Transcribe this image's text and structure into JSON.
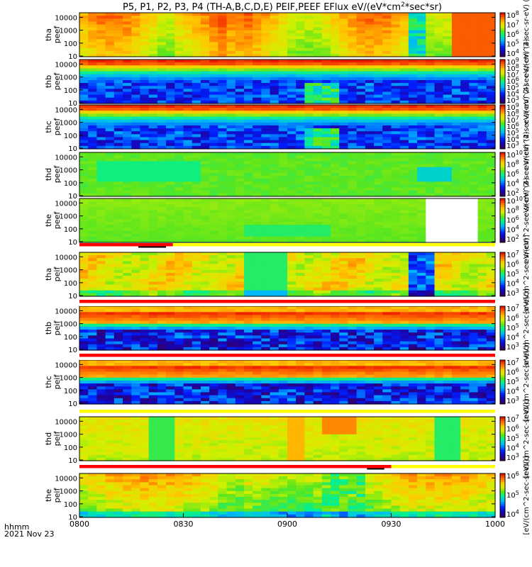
{
  "chart_data": {
    "type": "heatmap",
    "title": "P5, P1, P2, P3, P4 (TH-A,B,C,D,E) PEIF,PEEF EFlux eV/(eV*cm^2*sec*sr)",
    "x_axis": {
      "ticks": [
        "0800",
        "0830",
        "0900",
        "0930",
        "1000"
      ],
      "range": [
        "08:00",
        "10:00"
      ],
      "label_line1": "hhmm",
      "label_line2": "2021 Nov 23"
    },
    "y_axis_ticks": [
      "10",
      "100",
      "1000",
      "10000"
    ],
    "y_scale": "log",
    "panels": [
      {
        "id": "tha-peef",
        "label": "tha peef",
        "colorbar_ticks": [
          "10^4",
          "10^5",
          "10^6",
          "10^7",
          "10^8"
        ],
        "colorbar_label": "eV/(cm^2-sec-sr-eV) (4)",
        "pattern": "broad-warm"
      },
      {
        "id": "thb-peef",
        "label": "thb peef",
        "colorbar_ticks": [
          "10^3",
          "10^4",
          "10^5",
          "10^6",
          "10^7",
          "10^8",
          "10^9"
        ],
        "colorbar_label": "eV/(cm^2-sec-sr-eV) (4)",
        "pattern": "electron-bands"
      },
      {
        "id": "thc-peef",
        "label": "thc peef",
        "colorbar_ticks": [
          "10^3",
          "10^4",
          "10^5",
          "10^6",
          "10^7",
          "10^8",
          "10^9"
        ],
        "colorbar_label": "eV/(cm^2-sec-sr-eV) (4)",
        "pattern": "electron-bands"
      },
      {
        "id": "thd-peef",
        "label": "thd peef",
        "colorbar_ticks": [
          "10^2",
          "10^4",
          "10^6",
          "10^8",
          "10^10"
        ],
        "colorbar_label": "eV/(cm^2-sec-sr-eV) (4)",
        "pattern": "green-flat"
      },
      {
        "id": "the-peef",
        "label": "the peef",
        "colorbar_ticks": [
          "10^2",
          "10^4",
          "10^6",
          "10^8",
          "10^10"
        ],
        "colorbar_label": "eV/(cm^2-sec-sr-eV) (4)",
        "pattern": "green-gap"
      },
      {
        "id": "tha-peif",
        "label": "tha peif",
        "colorbar_ticks": [
          "10^3",
          "10^4",
          "10^5",
          "10^6",
          "10^7"
        ],
        "colorbar_label": "[eV/(cm^2-sec-sr-eV)]",
        "pattern": "ion-mixed"
      },
      {
        "id": "thb-peif",
        "label": "thb peif",
        "colorbar_ticks": [
          "10^3",
          "10^4",
          "10^5",
          "10^6",
          "10^7"
        ],
        "colorbar_label": "[eV/(cm^2-sec-sr-eV)]",
        "pattern": "ion-bands"
      },
      {
        "id": "thc-peif",
        "label": "thc peif",
        "colorbar_ticks": [
          "10^3",
          "10^4",
          "10^5",
          "10^6",
          "10^7"
        ],
        "colorbar_label": "[eV/(cm^2-sec-sr-eV)]",
        "pattern": "ion-bands"
      },
      {
        "id": "thd-peif",
        "label": "thd peif",
        "colorbar_ticks": [
          "10^3",
          "10^4",
          "10^5",
          "10^6",
          "10^7"
        ],
        "colorbar_label": "[eV/(cm^2-sec-sr-eV)]",
        "pattern": "ion-mixed2"
      },
      {
        "id": "the-peif",
        "label": "the peif",
        "colorbar_ticks": [
          "10^4",
          "10^5",
          "10^6"
        ],
        "colorbar_label": "[eV/(cm^2-sec-sr-eV)]",
        "pattern": "ion-the"
      }
    ],
    "mode_bars": [
      {
        "after_panel": 4,
        "segments": [
          [
            "08:00",
            "08:27",
            "red"
          ],
          [
            "08:27",
            "10:00",
            "yellow"
          ]
        ],
        "marker": [
          "08:17",
          "08:25"
        ]
      },
      {
        "after_panel": 5,
        "segments": [
          [
            "08:00",
            "10:00",
            "red"
          ]
        ]
      },
      {
        "after_panel": 6,
        "segments": [
          [
            "08:00",
            "10:00",
            "red"
          ]
        ]
      },
      {
        "after_panel": 7,
        "segments": [
          [
            "08:00",
            "10:00",
            "yellow"
          ]
        ]
      },
      {
        "after_panel": 8,
        "segments": [
          [
            "08:00",
            "09:30",
            "red"
          ],
          [
            "09:30",
            "10:00",
            "yellow"
          ]
        ],
        "marker": [
          "09:23",
          "09:28"
        ]
      }
    ]
  }
}
